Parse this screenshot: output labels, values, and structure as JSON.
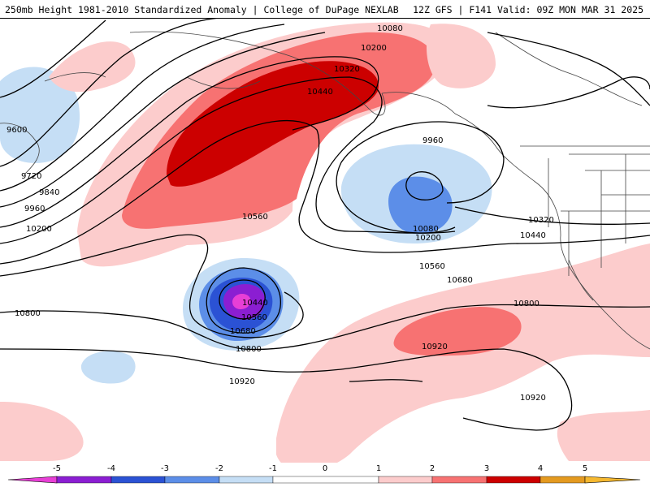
{
  "header": {
    "title": "250mb Height 1981-2010 Standardized Anomaly | College of DuPage NEXLAB",
    "run_info": "12Z GFS | F141 Valid: 09Z MON MAR 31 2025"
  },
  "colors": {
    "anom_neg5": "#e83fd6",
    "anom_neg4": "#8b1ed2",
    "anom_neg3": "#2b52d4",
    "anom_neg2": "#5c8ee8",
    "anom_neg1": "#c5def5",
    "anom_pos1": "#fccccc",
    "anom_pos2": "#f77272",
    "anom_pos3": "#cc0000",
    "anom_pos4": "#e49a20",
    "contour": "#000000",
    "coast": "#333333"
  },
  "contour_labels": {
    "c9600": "9600",
    "c9720": "9720",
    "c9840": "9840",
    "c9960_w": "9960",
    "c10200_w": "10200",
    "c10800_w": "10800",
    "c10080_n": "10080",
    "c10200_n": "10200",
    "c10320_n": "10320",
    "c10440_n": "10440",
    "c10560_mid": "10560",
    "c9960_e": "9960",
    "c10080_e": "10080",
    "c10200_e": "10200",
    "c10320_e": "10320",
    "c10440_e": "10440",
    "c10560_e": "10560",
    "c10680_e": "10680",
    "c10800_e": "10800",
    "c10440_low": "10440",
    "c10560_low": "10560",
    "c10680_low": "10680",
    "c10800_s": "10800",
    "c10920_s": "10920",
    "c10920_mid": "10920",
    "c10920_se": "10920"
  },
  "colorbar": {
    "labels": [
      "-5",
      "-4",
      "-3",
      "-2",
      "-1",
      "0",
      "1",
      "2",
      "3",
      "4",
      "5"
    ]
  }
}
